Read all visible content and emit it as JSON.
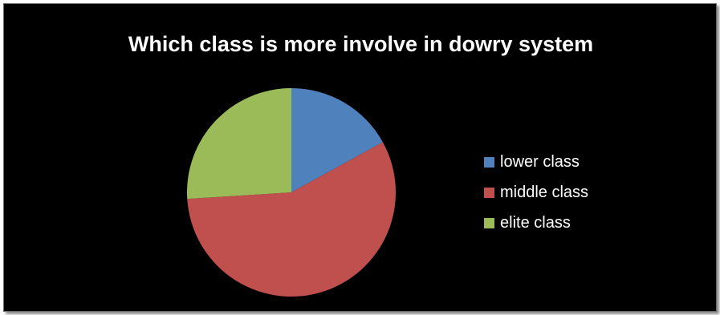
{
  "chart_data": {
    "type": "pie",
    "title": "Which class is more involve in dowry system",
    "categories": [
      "lower class",
      "middle class",
      "elite class"
    ],
    "values": [
      17,
      57,
      26
    ],
    "colors": [
      "#4f81bd",
      "#c0504d",
      "#9bbb59"
    ],
    "legend_position": "right",
    "start_angle": "12 o'clock, clockwise"
  }
}
